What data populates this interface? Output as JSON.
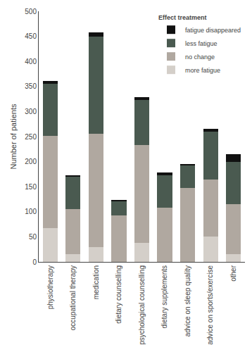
{
  "chart_data": {
    "type": "bar",
    "stacked": true,
    "categories": [
      "physiotherapy",
      "occupational therapy",
      "medication",
      "dietary counselling",
      "psychological counselling",
      "dietary supplements",
      "advice on sleep quality",
      "advice on sports/exercise",
      "other"
    ],
    "series": [
      {
        "name": "more fatigue",
        "color": "#d4cfc9",
        "values": [
          68,
          15,
          30,
          0,
          38,
          0,
          0,
          50,
          15
        ]
      },
      {
        "name": "no change",
        "color": "#b0a8a0",
        "values": [
          183,
          90,
          225,
          93,
          195,
          108,
          148,
          115,
          100
        ]
      },
      {
        "name": "less fatigue",
        "color": "#4a5a50",
        "values": [
          105,
          65,
          195,
          28,
          90,
          65,
          45,
          95,
          85
        ]
      },
      {
        "name": "fatigue disappeared",
        "color": "#111111",
        "values": [
          5,
          3,
          8,
          2,
          5,
          5,
          2,
          5,
          15
        ]
      }
    ],
    "ylabel": "Number of patients",
    "ylim": [
      0,
      500
    ],
    "yticks": [
      0,
      50,
      100,
      150,
      200,
      250,
      300,
      350,
      400,
      450,
      500
    ],
    "legend": "upper right",
    "legend_title": "Effect treatment",
    "grid": false
  }
}
